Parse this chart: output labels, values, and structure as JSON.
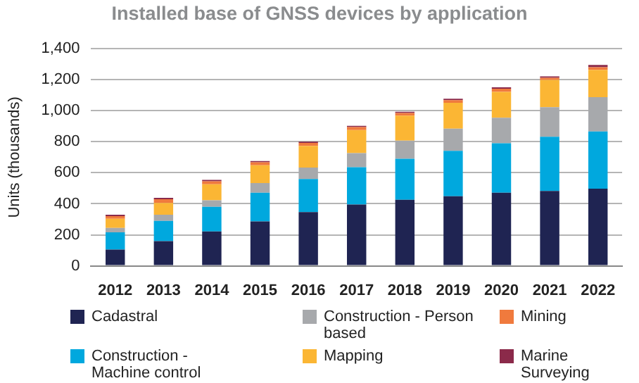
{
  "chart_data": {
    "type": "bar",
    "title": "Installed base of GNSS devices by application",
    "ylabel": "Units (thousands)",
    "categories": [
      "2012",
      "2013",
      "2014",
      "2015",
      "2016",
      "2017",
      "2018",
      "2019",
      "2020",
      "2021",
      "2022"
    ],
    "stacked": true,
    "ylim": [
      0,
      1400
    ],
    "yticks": [
      0,
      200,
      400,
      600,
      800,
      {
        "value": 1000,
        "label": "1,000"
      },
      {
        "value": 1200,
        "label": "1,200"
      },
      {
        "value": 1400,
        "label": "1,400"
      }
    ],
    "grid": "y",
    "legend": "bottom",
    "series": [
      {
        "name": "Cadastral",
        "color": "#1f2452",
        "values": [
          105,
          159,
          222,
          287,
          347,
          395,
          426,
          449,
          472,
          483,
          497
        ]
      },
      {
        "name": "Construction - Machine control",
        "color": "#00a8de",
        "values": [
          111,
          131,
          159,
          185,
          213,
          241,
          264,
          292,
          318,
          349,
          369
        ]
      },
      {
        "name": "Construction - Person based",
        "color": "#a7a9ac",
        "values": [
          28,
          40,
          42,
          62,
          74,
          91,
          117,
          143,
          165,
          191,
          222
        ]
      },
      {
        "name": "Mapping",
        "color": "#fbb634",
        "values": [
          60,
          76,
          103,
          114,
          139,
          148,
          162,
          167,
          167,
          176,
          176
        ]
      },
      {
        "name": "Mining",
        "color": "#f07a3d",
        "values": [
          17,
          23,
          19,
          20,
          20,
          20,
          17,
          17,
          20,
          14,
          17
        ]
      },
      {
        "name": "Marine Surveying",
        "color": "#8b2a4a",
        "values": [
          9,
          9,
          9,
          8,
          8,
          8,
          8,
          9,
          9,
          9,
          14
        ]
      }
    ]
  }
}
